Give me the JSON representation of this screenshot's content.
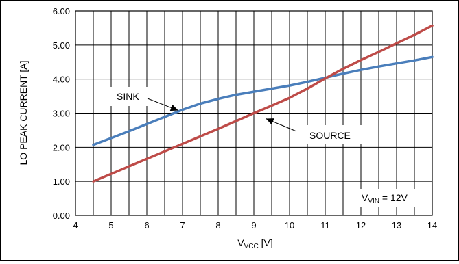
{
  "chart_data": {
    "type": "line",
    "xlabel": {
      "main": "V",
      "sub": "VCC",
      "tail": " [V]"
    },
    "ylabel": "LO PEAK CURRENT [A]",
    "xlim": [
      4,
      14
    ],
    "ylim": [
      0,
      6
    ],
    "x_ticks": [
      "4",
      "5",
      "6",
      "7",
      "8",
      "9",
      "10",
      "11",
      "12",
      "13",
      "14"
    ],
    "y_ticks": [
      "0.00",
      "1.00",
      "2.00",
      "3.00",
      "4.00",
      "5.00",
      "6.00"
    ],
    "grid": true,
    "minor_grid": "x",
    "series": [
      {
        "name": "SINK",
        "color": "#4a7ebb",
        "x": [
          4.5,
          5.0,
          5.5,
          6.0,
          6.5,
          7.0,
          7.5,
          8.0,
          8.5,
          9.0,
          9.5,
          10.0,
          10.5,
          11.0,
          11.5,
          12.0,
          12.5,
          13.0,
          13.5,
          14.0
        ],
        "y": [
          2.07,
          2.27,
          2.47,
          2.68,
          2.89,
          3.1,
          3.28,
          3.42,
          3.54,
          3.63,
          3.72,
          3.81,
          3.92,
          4.04,
          4.16,
          4.27,
          4.37,
          4.46,
          4.55,
          4.65
        ]
      },
      {
        "name": "SOURCE",
        "color": "#be4b48",
        "x": [
          4.5,
          5.0,
          5.5,
          6.0,
          6.5,
          7.0,
          7.5,
          8.0,
          8.5,
          9.0,
          9.5,
          10.0,
          10.5,
          11.0,
          11.5,
          12.0,
          12.5,
          13.0,
          13.5,
          14.0
        ],
        "y": [
          1.0,
          1.22,
          1.44,
          1.66,
          1.88,
          2.1,
          2.32,
          2.54,
          2.77,
          3.0,
          3.22,
          3.45,
          3.72,
          4.02,
          4.3,
          4.56,
          4.8,
          5.05,
          5.3,
          5.57
        ]
      }
    ],
    "annotations": [
      {
        "text": "SINK",
        "arrow_to": {
          "x": 6.9,
          "y": 3.02
        }
      },
      {
        "text": "SOURCE",
        "arrow_to": {
          "x": 9.3,
          "y": 2.88
        }
      },
      {
        "text_main": "V",
        "text_sub": "VIN",
        "text_tail": " = 12V"
      }
    ]
  }
}
